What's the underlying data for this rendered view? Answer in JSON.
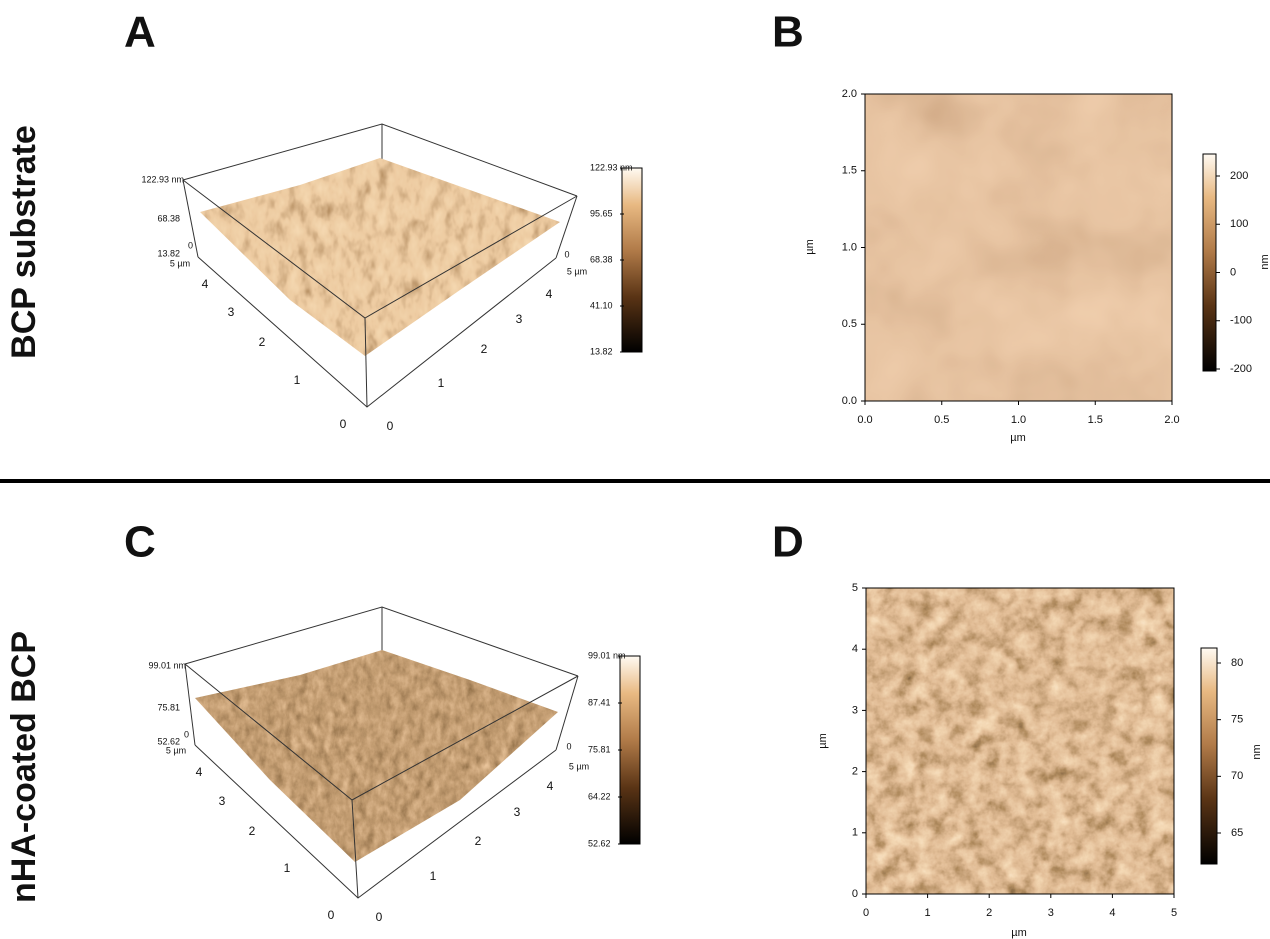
{
  "row_labels": [
    "BCP substrate",
    "nHA-coated BCP"
  ],
  "panels": [
    {
      "letter": "A",
      "z_axis": [
        "122.93 nm",
        "68.38",
        "13.82"
      ],
      "z_zero": "0",
      "left_axis": [
        "0",
        "1",
        "2",
        "3",
        "4",
        "5 µm"
      ],
      "right_axis": [
        "0",
        "1",
        "2",
        "3",
        "4",
        "5 µm"
      ],
      "right_zero": "0",
      "colorbar": [
        "122.93 nm",
        "95.65",
        "68.38",
        "41.10",
        "13.82"
      ]
    },
    {
      "letter": "B",
      "x_label": "µm",
      "y_label": "µm",
      "x_ticks": [
        "0.0",
        "0.5",
        "1.0",
        "1.5",
        "2.0"
      ],
      "y_ticks": [
        "0.0",
        "0.5",
        "1.0",
        "1.5",
        "2.0"
      ],
      "colorbar_label": "nm",
      "colorbar_ticks": [
        "200",
        "100",
        "0",
        "-100",
        "-200"
      ]
    },
    {
      "letter": "C",
      "z_axis": [
        "99.01 nm",
        "75.81",
        "52.62"
      ],
      "z_zero": "0",
      "left_axis": [
        "0",
        "1",
        "2",
        "3",
        "4",
        "5 µm"
      ],
      "right_axis": [
        "0",
        "1",
        "2",
        "3",
        "4",
        "5 µm"
      ],
      "right_zero": "0",
      "colorbar": [
        "99.01 nm",
        "87.41",
        "75.81",
        "64.22",
        "52.62"
      ]
    },
    {
      "letter": "D",
      "x_label": "µm",
      "y_label": "µm",
      "x_ticks": [
        "0",
        "1",
        "2",
        "3",
        "4",
        "5"
      ],
      "y_ticks": [
        "0",
        "1",
        "2",
        "3",
        "4",
        "5"
      ],
      "colorbar_label": "nm",
      "colorbar_ticks": [
        "80",
        "75",
        "70",
        "65"
      ]
    }
  ]
}
